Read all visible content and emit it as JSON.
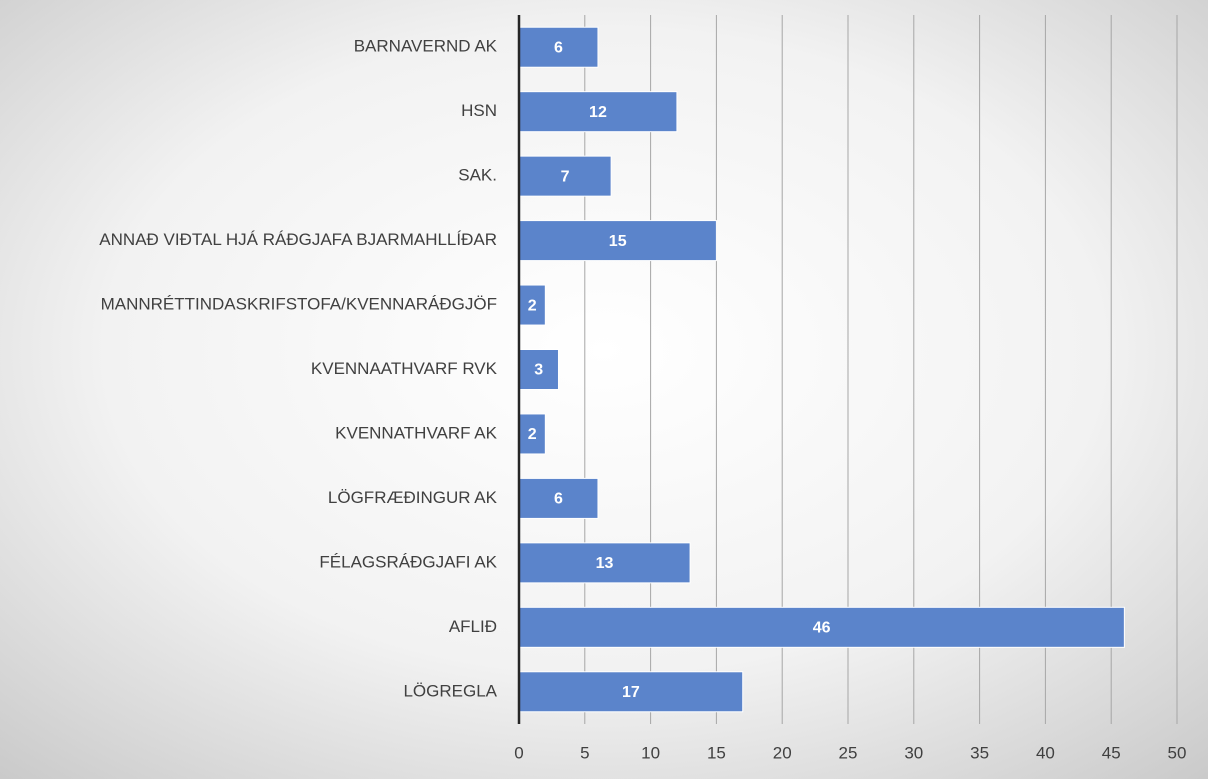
{
  "chart_data": {
    "type": "barh",
    "categories": [
      "BARNAVERND AK",
      "HSN",
      "SAK.",
      "ANNAÐ VIÐTAL HJÁ RÁÐGJAFA BJARMAHLLÍÐAR",
      "MANNRÉTTINDASKRIFSTOFA/KVENNARÁÐGJÖF",
      "KVENNAATHVARF RVK",
      "KVENNATHVARF AK",
      "LÖGFRÆÐINGUR AK",
      "FÉLAGSRÁÐGJAFI AK",
      "AFLIÐ",
      "LÖGREGLA"
    ],
    "values": [
      6,
      12,
      7,
      15,
      2,
      3,
      2,
      6,
      13,
      46,
      17
    ],
    "color": "#5b84cb",
    "xlim": [
      0,
      50
    ],
    "xticks": [
      0,
      5,
      10,
      15,
      20,
      25,
      30,
      35,
      40,
      45,
      50
    ],
    "grid": true
  }
}
